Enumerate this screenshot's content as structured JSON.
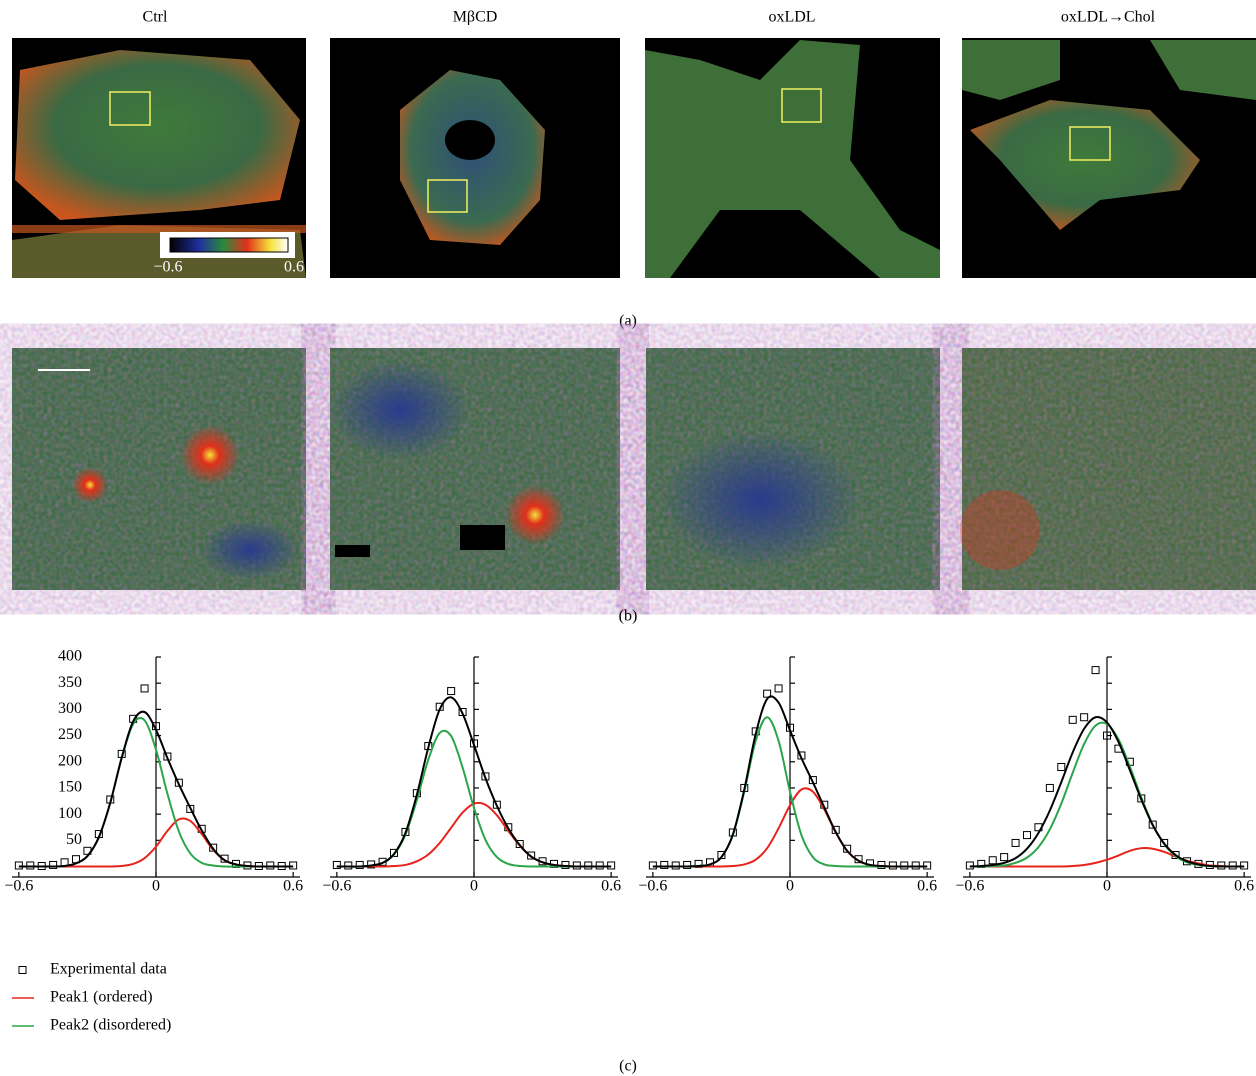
{
  "columns": [
    "Ctrl",
    "MβCD",
    "oxLDL",
    "oxLDL→Chol"
  ],
  "colorbar": {
    "min_label": "−0.6",
    "max_label": "0.6"
  },
  "panel_labels": [
    "(a)",
    "(b)",
    "(c)"
  ],
  "chart_data": [
    {
      "type": "line",
      "xlim": [
        -0.63,
        0.63
      ],
      "ylim": [
        -20,
        400
      ],
      "xticks": [
        {
          "value": -0.6,
          "label": "−0.6"
        },
        0,
        0.6
      ],
      "yticks": [
        50,
        100,
        150,
        200,
        250,
        300,
        350,
        400
      ],
      "ytick_labels": true,
      "legend": true,
      "x": [
        -0.6,
        -0.55,
        -0.5,
        -0.45,
        -0.4,
        -0.35,
        -0.3,
        -0.25,
        -0.2,
        -0.15,
        -0.1,
        -0.05,
        0,
        0.05,
        0.1,
        0.15,
        0.2,
        0.25,
        0.3,
        0.35,
        0.4,
        0.45,
        0.5,
        0.55,
        0.6
      ],
      "series": [
        {
          "name": "Experimental data",
          "color": "#000000",
          "style": "markers",
          "values": [
            2,
            2,
            1,
            3,
            8,
            14,
            30,
            62,
            128,
            215,
            282,
            340,
            268,
            210,
            160,
            110,
            72,
            36,
            15,
            5,
            2,
            1,
            2,
            1,
            2
          ]
        },
        {
          "name": "Peak1 (ordered)",
          "color": "#e8231c",
          "style": "line",
          "values": [
            0,
            0,
            0,
            0,
            0,
            0,
            0,
            0,
            0,
            1,
            5,
            16,
            38,
            68,
            90,
            87,
            62,
            32,
            12,
            4,
            1,
            0,
            0,
            0,
            0
          ]
        },
        {
          "name": "Peak2 (disordered)",
          "color": "#2aa54a",
          "style": "line",
          "values": [
            0,
            0,
            0,
            0,
            1,
            6,
            20,
            56,
            122,
            207,
            272,
            279,
            223,
            139,
            67,
            25,
            7,
            2,
            0,
            0,
            0,
            0,
            0,
            0,
            0
          ]
        },
        {
          "color": "#000000",
          "style": "line",
          "values": [
            0,
            0,
            0,
            0,
            1,
            6,
            20,
            56,
            122,
            208,
            277,
            295,
            261,
            207,
            157,
            112,
            69,
            34,
            12,
            4,
            1,
            0,
            0,
            0,
            0
          ]
        }
      ]
    },
    {
      "type": "line",
      "xlim": [
        -0.63,
        0.63
      ],
      "ylim": [
        -20,
        400
      ],
      "xticks": [
        {
          "value": -0.6,
          "label": "−0.6"
        },
        0,
        0.6
      ],
      "yticks": [
        50,
        100,
        150,
        200,
        250,
        300,
        350,
        400
      ],
      "ytick_labels": false,
      "legend": false,
      "x": [
        -0.6,
        -0.55,
        -0.5,
        -0.45,
        -0.4,
        -0.35,
        -0.3,
        -0.25,
        -0.2,
        -0.15,
        -0.1,
        -0.05,
        0,
        0.05,
        0.1,
        0.15,
        0.2,
        0.25,
        0.3,
        0.35,
        0.4,
        0.45,
        0.5,
        0.55,
        0.6
      ],
      "series": [
        {
          "color": "#000000",
          "style": "markers",
          "values": [
            3,
            2,
            3,
            4,
            9,
            26,
            66,
            140,
            230,
            305,
            335,
            295,
            235,
            172,
            118,
            75,
            43,
            21,
            10,
            5,
            3,
            2,
            2,
            2,
            2
          ]
        },
        {
          "color": "#e8231c",
          "style": "line",
          "values": [
            0,
            0,
            0,
            0,
            0,
            1,
            3,
            10,
            23,
            45,
            74,
            103,
            120,
            118,
            98,
            68,
            40,
            19,
            8,
            3,
            1,
            0,
            0,
            0,
            0
          ]
        },
        {
          "color": "#2aa54a",
          "style": "line",
          "values": [
            0,
            0,
            0,
            2,
            7,
            23,
            61,
            127,
            204,
            255,
            249,
            189,
            112,
            51,
            18,
            5,
            1,
            0,
            0,
            0,
            0,
            0,
            0,
            0,
            0
          ]
        },
        {
          "color": "#000000",
          "style": "line",
          "values": [
            0,
            0,
            0,
            2,
            7,
            24,
            64,
            137,
            227,
            300,
            323,
            292,
            232,
            169,
            116,
            73,
            41,
            19,
            8,
            3,
            1,
            0,
            0,
            0,
            0
          ]
        }
      ]
    },
    {
      "type": "line",
      "xlim": [
        -0.63,
        0.63
      ],
      "ylim": [
        -20,
        400
      ],
      "xticks": [
        {
          "value": -0.6,
          "label": "−0.6"
        },
        0,
        0.6
      ],
      "yticks": [
        50,
        100,
        150,
        200,
        250,
        300,
        350,
        400
      ],
      "ytick_labels": false,
      "legend": false,
      "x": [
        -0.6,
        -0.55,
        -0.5,
        -0.45,
        -0.4,
        -0.35,
        -0.3,
        -0.25,
        -0.2,
        -0.15,
        -0.1,
        -0.05,
        0,
        0.05,
        0.1,
        0.15,
        0.2,
        0.25,
        0.3,
        0.35,
        0.4,
        0.45,
        0.5,
        0.55,
        0.6
      ],
      "series": [
        {
          "color": "#000000",
          "style": "markers",
          "values": [
            2,
            3,
            2,
            3,
            5,
            8,
            22,
            65,
            150,
            258,
            330,
            340,
            265,
            212,
            165,
            118,
            70,
            34,
            14,
            6,
            3,
            2,
            2,
            2,
            2
          ]
        },
        {
          "color": "#e8231c",
          "style": "line",
          "values": [
            0,
            0,
            0,
            0,
            0,
            0,
            0,
            1,
            4,
            13,
            35,
            73,
            117,
            147,
            143,
            109,
            65,
            30,
            11,
            3,
            1,
            0,
            0,
            0,
            0
          ]
        },
        {
          "color": "#2aa54a",
          "style": "line",
          "values": [
            0,
            0,
            0,
            0,
            1,
            4,
            18,
            60,
            143,
            240,
            285,
            240,
            143,
            60,
            18,
            4,
            1,
            0,
            0,
            0,
            0,
            0,
            0,
            0,
            0
          ]
        },
        {
          "color": "#000000",
          "style": "line",
          "values": [
            0,
            0,
            0,
            0,
            1,
            4,
            18,
            61,
            147,
            253,
            320,
            313,
            260,
            207,
            161,
            113,
            66,
            30,
            11,
            3,
            1,
            0,
            0,
            0,
            0
          ]
        }
      ]
    },
    {
      "type": "line",
      "xlim": [
        -0.63,
        0.63
      ],
      "ylim": [
        -20,
        400
      ],
      "xticks": [
        {
          "value": -0.6,
          "label": "−0.6"
        },
        0,
        0.6
      ],
      "yticks": [
        50,
        100,
        150,
        200,
        250,
        300,
        350,
        400
      ],
      "ytick_labels": false,
      "legend": false,
      "x": [
        -0.6,
        -0.55,
        -0.5,
        -0.45,
        -0.4,
        -0.35,
        -0.3,
        -0.25,
        -0.2,
        -0.15,
        -0.1,
        -0.05,
        0,
        0.05,
        0.1,
        0.15,
        0.2,
        0.25,
        0.3,
        0.35,
        0.4,
        0.45,
        0.5,
        0.55,
        0.6
      ],
      "series": [
        {
          "color": "#000000",
          "style": "markers",
          "values": [
            2,
            5,
            12,
            18,
            45,
            60,
            75,
            150,
            190,
            280,
            285,
            375,
            250,
            225,
            200,
            130,
            80,
            45,
            22,
            10,
            5,
            3,
            2,
            2,
            2
          ]
        },
        {
          "color": "#e8231c",
          "style": "line",
          "values": [
            0,
            0,
            0,
            0,
            0,
            0,
            0,
            0,
            0,
            1,
            3,
            7,
            13,
            21,
            30,
            35,
            34,
            28,
            19,
            11,
            6,
            2,
            1,
            0,
            0
          ]
        },
        {
          "color": "#2aa54a",
          "style": "line",
          "values": [
            0,
            0,
            1,
            2,
            7,
            17,
            37,
            71,
            120,
            179,
            234,
            269,
            272,
            243,
            191,
            132,
            80,
            43,
            20,
            8,
            3,
            1,
            0,
            0,
            0
          ]
        },
        {
          "color": "#000000",
          "style": "line",
          "values": [
            0,
            1,
            3,
            7,
            16,
            34,
            64,
            107,
            161,
            218,
            263,
            285,
            275,
            238,
            184,
            128,
            79,
            44,
            22,
            10,
            4,
            1,
            0,
            0,
            0
          ]
        }
      ]
    }
  ]
}
